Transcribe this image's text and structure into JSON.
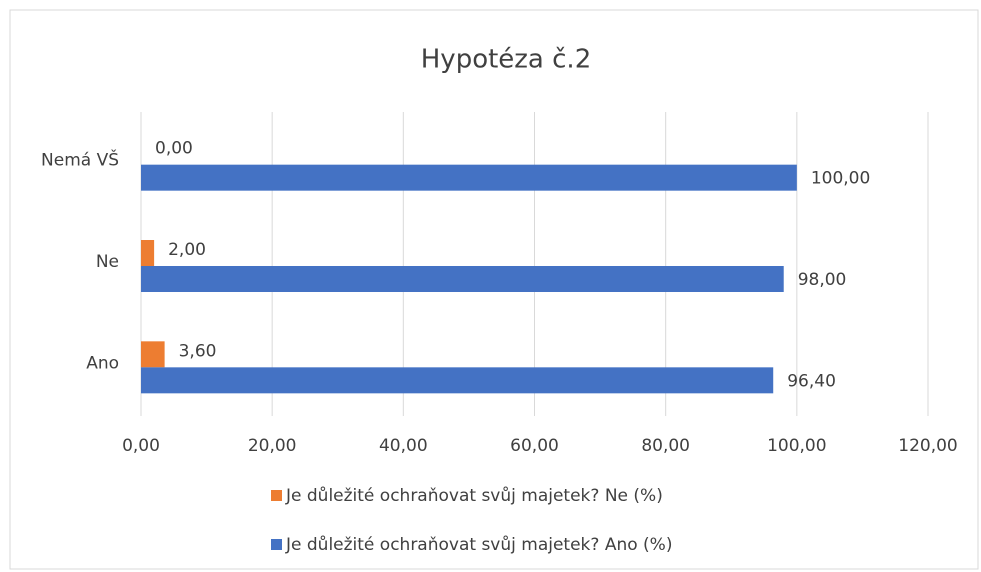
{
  "chart_data": {
    "type": "hbar",
    "title": "Hypotéza č.2",
    "categories": [
      "Ano",
      "Ne",
      "Nemá VŠ"
    ],
    "series": [
      {
        "name": "Je důležité ochraňovat svůj majetek? Ne (%)",
        "color": "#ed7d31",
        "values": [
          3.6,
          2.0,
          0.0
        ],
        "value_labels": [
          "3,60",
          "2,00",
          "0,00"
        ]
      },
      {
        "name": "Je důležité ochraňovat svůj majetek? Ano (%)",
        "color": "#4472c4",
        "values": [
          96.4,
          98.0,
          100.0
        ],
        "value_labels": [
          "96,40",
          "98,00",
          "100,00"
        ]
      }
    ],
    "xlim": [
      0,
      120
    ],
    "xticks": [
      {
        "value": 0,
        "label": "0,00"
      },
      {
        "value": 20,
        "label": "20,00"
      },
      {
        "value": 40,
        "label": "40,00"
      },
      {
        "value": 60,
        "label": "60,00"
      },
      {
        "value": 80,
        "label": "80,00"
      },
      {
        "value": 100,
        "label": "100,00"
      },
      {
        "value": 120,
        "label": "120,00"
      }
    ],
    "grid": true,
    "legend": "bottom"
  }
}
